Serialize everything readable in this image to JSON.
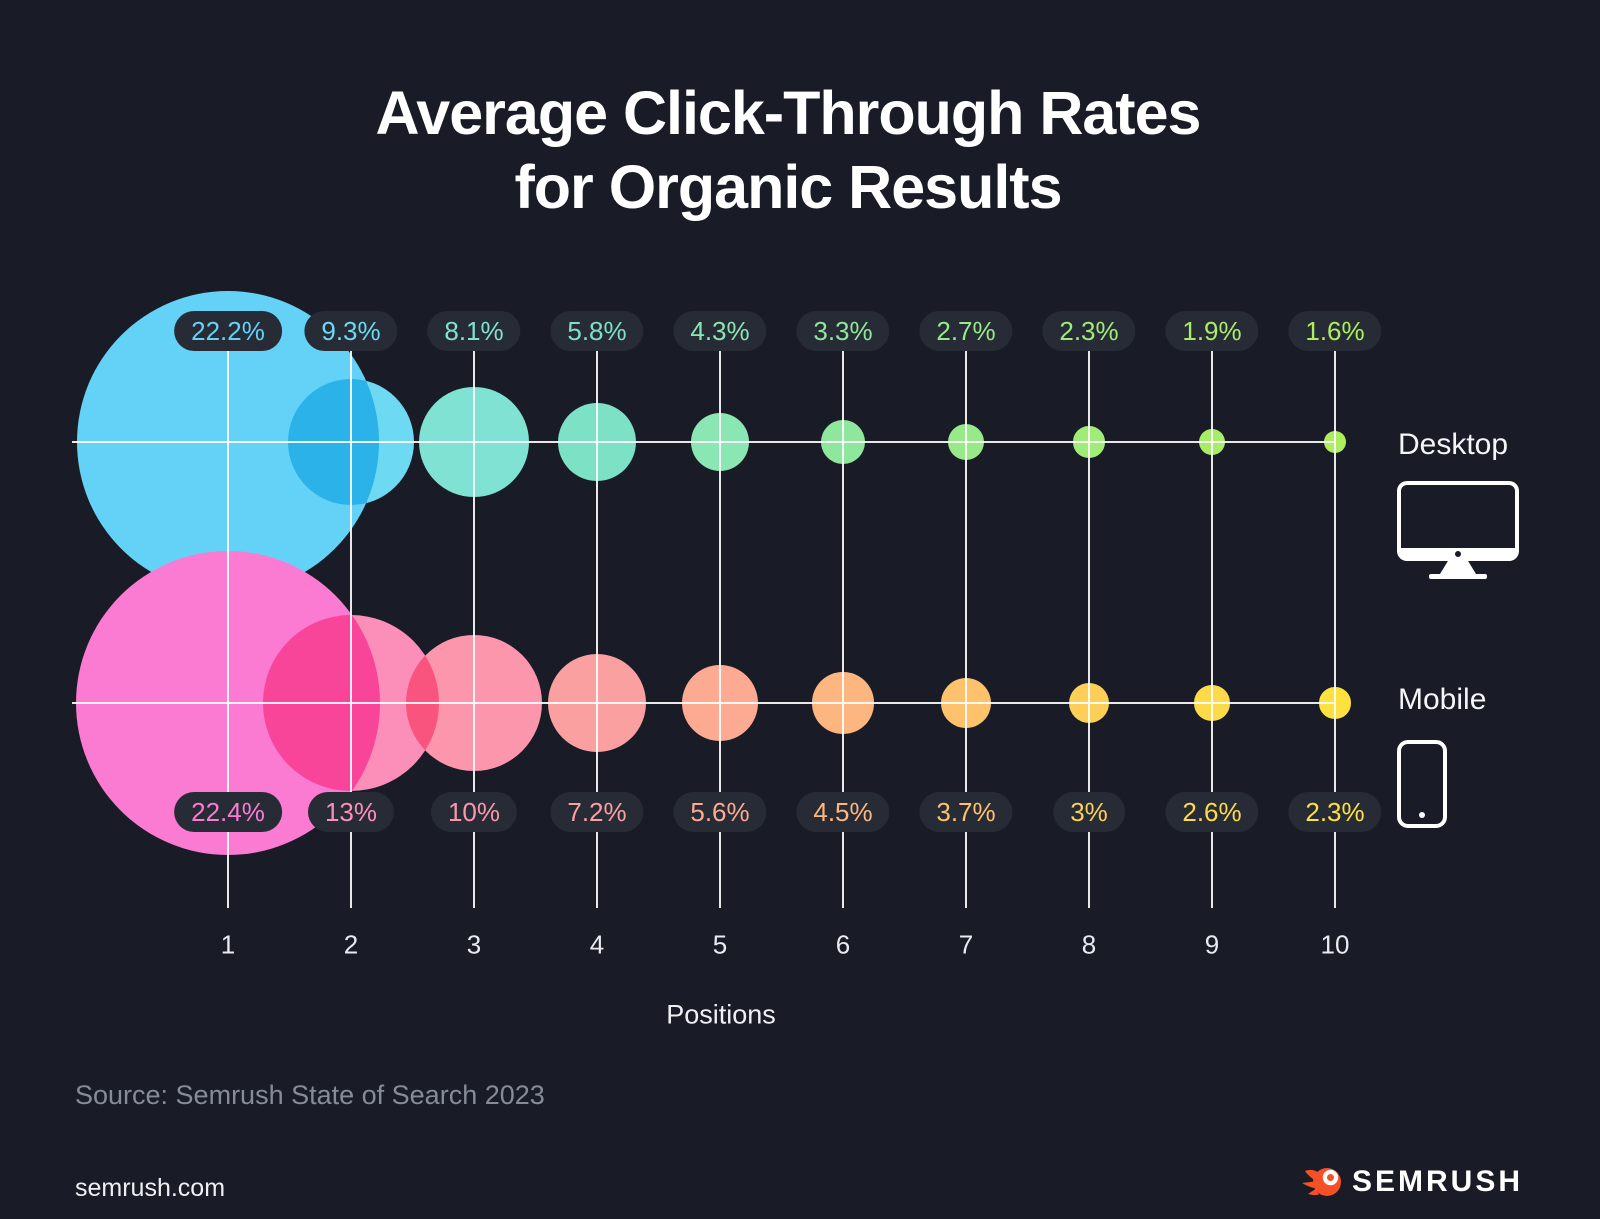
{
  "title": {
    "line1": "Average Click-Through Rates",
    "line2": "for Organic Results"
  },
  "chart_data": {
    "type": "bubble",
    "x": [
      1,
      2,
      3,
      4,
      5,
      6,
      7,
      8,
      9,
      10
    ],
    "xlabel": "Positions",
    "legend_position": "right",
    "grid": true,
    "series": [
      {
        "name": "Desktop",
        "values": [
          22.2,
          9.3,
          8.1,
          5.8,
          4.3,
          3.3,
          2.7,
          2.3,
          1.9,
          1.6
        ],
        "labels": [
          "22.2%",
          "9.3%",
          "8.1%",
          "5.8%",
          "4.3%",
          "3.3%",
          "2.7%",
          "2.3%",
          "1.9%",
          "1.6%"
        ],
        "colors": [
          "#64d2f6",
          "#6ed9f2",
          "#7fe2d2",
          "#7ce1c5",
          "#8ae6b2",
          "#8fe79d",
          "#98e988",
          "#a1eb77",
          "#a7ed69",
          "#aeee5e"
        ]
      },
      {
        "name": "Mobile",
        "values": [
          22.4,
          13,
          10,
          7.2,
          5.6,
          4.5,
          3.7,
          3,
          2.6,
          2.3
        ],
        "labels": [
          "22.4%",
          "13%",
          "10%",
          "7.2%",
          "5.6%",
          "4.5%",
          "3.7%",
          "3%",
          "2.6%",
          "2.3%"
        ],
        "colors": [
          "#fb7ad2",
          "#fc8eba",
          "#fc96ad",
          "#fba0a1",
          "#fcaa92",
          "#fdb67f",
          "#fdc26b",
          "#fdcf58",
          "#fcda4a",
          "#fde13e"
        ]
      }
    ],
    "legend": [
      {
        "label": "Desktop",
        "icon": "monitor-icon"
      },
      {
        "label": "Mobile",
        "icon": "phone-icon"
      }
    ]
  },
  "colors": {
    "background": "#191c26",
    "pill_bg": "#272b36",
    "gridline": "rgba(255,255,255,0.9)",
    "brand_orange": "#f65026"
  },
  "footer": {
    "source": "Source: Semrush State of Search 2023",
    "site": "semrush.com",
    "brand": "SEMRUSH"
  }
}
